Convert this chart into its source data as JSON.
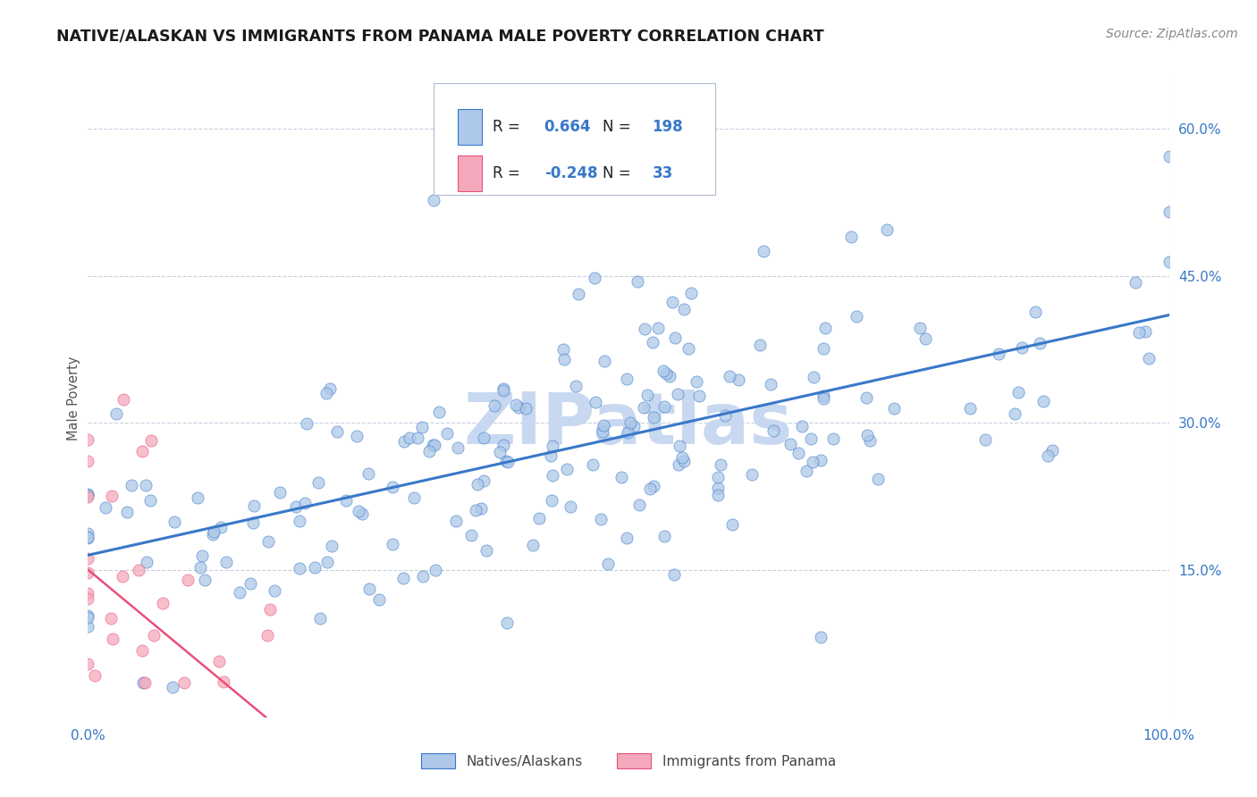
{
  "title": "NATIVE/ALASKAN VS IMMIGRANTS FROM PANAMA MALE POVERTY CORRELATION CHART",
  "source": "Source: ZipAtlas.com",
  "ylabel": "Male Poverty",
  "xlim": [
    0,
    1.0
  ],
  "ylim": [
    0,
    0.65
  ],
  "y_ticks": [
    0.15,
    0.3,
    0.45,
    0.6
  ],
  "y_tick_labels": [
    "15.0%",
    "30.0%",
    "45.0%",
    "60.0%"
  ],
  "native_R": 0.664,
  "native_N": 198,
  "panama_R": -0.248,
  "panama_N": 33,
  "native_color": "#adc8e8",
  "panama_color": "#f5a8bc",
  "native_line_color": "#3878c8",
  "panama_line_color": "#e8507a",
  "watermark_color": "#c8d8f0",
  "background_color": "#ffffff",
  "grid_color": "#c8d0e0",
  "legend_edge_color": "#b0bcd0"
}
